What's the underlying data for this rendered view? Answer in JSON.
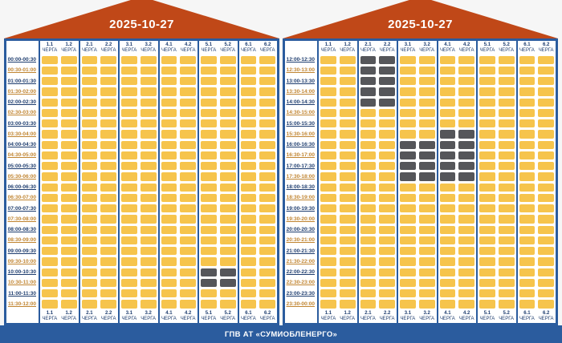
{
  "app": {
    "footer_label": "ГПВ АТ «СУМИОБЛЕНЕРГО»"
  },
  "colors": {
    "roof_red": "#C04818",
    "frame_blue": "#2B5C9E",
    "cell_power_on": "#F6C44C",
    "cell_outage": "#55565A",
    "time_label_hour": "#1D3C6E",
    "time_label_half": "#C08430"
  },
  "queues": [
    "1.1",
    "1.2",
    "2.1",
    "2.2",
    "3.1",
    "3.2",
    "4.1",
    "4.2",
    "5.1",
    "5.2",
    "6.1",
    "6.2"
  ],
  "queue_sublabel": "ЧЕРГА",
  "panels": [
    {
      "date": "2025-10-27",
      "rows": [
        {
          "time": "00:00-00:30",
          "off": []
        },
        {
          "time": "00:30-01:00",
          "off": []
        },
        {
          "time": "01:00-01:30",
          "off": []
        },
        {
          "time": "01:30-02:00",
          "off": []
        },
        {
          "time": "02:00-02:30",
          "off": []
        },
        {
          "time": "02:30-03:00",
          "off": []
        },
        {
          "time": "03:00-03:30",
          "off": []
        },
        {
          "time": "03:30-04:00",
          "off": []
        },
        {
          "time": "04:00-04:30",
          "off": []
        },
        {
          "time": "04:30-05:00",
          "off": []
        },
        {
          "time": "05:00-05:30",
          "off": []
        },
        {
          "time": "05:30-06:00",
          "off": []
        },
        {
          "time": "06:00-06:30",
          "off": []
        },
        {
          "time": "06:30-07:00",
          "off": []
        },
        {
          "time": "07:00-07:30",
          "off": []
        },
        {
          "time": "07:30-08:00",
          "off": []
        },
        {
          "time": "08:00-08:30",
          "off": []
        },
        {
          "time": "08:30-09:00",
          "off": []
        },
        {
          "time": "09:00-09:30",
          "off": []
        },
        {
          "time": "09:30-10:00",
          "off": []
        },
        {
          "time": "10:00-10:30",
          "off": [
            "5.1",
            "5.2"
          ]
        },
        {
          "time": "10:30-11:00",
          "off": [
            "5.1",
            "5.2"
          ]
        },
        {
          "time": "11:00-11:30",
          "off": []
        },
        {
          "time": "11:30-12:00",
          "off": []
        }
      ]
    },
    {
      "date": "2025-10-27",
      "rows": [
        {
          "time": "12:00-12:30",
          "off": [
            "2.1",
            "2.2"
          ]
        },
        {
          "time": "12:30-13:00",
          "off": [
            "2.1",
            "2.2"
          ]
        },
        {
          "time": "13:00-13:30",
          "off": [
            "2.1",
            "2.2"
          ]
        },
        {
          "time": "13:30-14:00",
          "off": [
            "2.1",
            "2.2"
          ]
        },
        {
          "time": "14:00-14:30",
          "off": [
            "2.1",
            "2.2"
          ]
        },
        {
          "time": "14:30-15:00",
          "off": []
        },
        {
          "time": "15:00-15:30",
          "off": []
        },
        {
          "time": "15:30-16:00",
          "off": [
            "4.1",
            "4.2"
          ]
        },
        {
          "time": "16:00-16:30",
          "off": [
            "3.1",
            "3.2",
            "4.1",
            "4.2"
          ]
        },
        {
          "time": "16:30-17:00",
          "off": [
            "3.1",
            "3.2",
            "4.1",
            "4.2"
          ]
        },
        {
          "time": "17:00-17:30",
          "off": [
            "3.1",
            "3.2",
            "4.1",
            "4.2"
          ]
        },
        {
          "time": "17:30-18:00",
          "off": [
            "3.1",
            "3.2",
            "4.1",
            "4.2"
          ]
        },
        {
          "time": "18:00-18:30",
          "off": []
        },
        {
          "time": "18:30-19:00",
          "off": []
        },
        {
          "time": "19:00-19:30",
          "off": []
        },
        {
          "time": "19:30-20:00",
          "off": []
        },
        {
          "time": "20:00-20:30",
          "off": []
        },
        {
          "time": "20:30-21:00",
          "off": []
        },
        {
          "time": "21:00-21:30",
          "off": []
        },
        {
          "time": "21:30-22:00",
          "off": []
        },
        {
          "time": "22:00-22:30",
          "off": []
        },
        {
          "time": "22:30-23:00",
          "off": []
        },
        {
          "time": "23:00-23:30",
          "off": []
        },
        {
          "time": "23:30-00:00",
          "off": []
        }
      ]
    }
  ],
  "chart_data": {
    "type": "heatmap",
    "title": "2025-10-27",
    "columns": [
      "1.1",
      "1.2",
      "2.1",
      "2.2",
      "3.1",
      "3.2",
      "4.1",
      "4.2",
      "5.1",
      "5.2",
      "6.1",
      "6.2"
    ],
    "column_sublabel": "ЧЕРГА",
    "time_range": [
      "00:00",
      "24:00"
    ],
    "slot_minutes": 30,
    "cell_states": {
      "on_color": "#F6C44C",
      "off_color": "#55565A"
    },
    "outages": [
      {
        "queues": [
          "5.1",
          "5.2"
        ],
        "from": "10:00",
        "to": "11:00"
      },
      {
        "queues": [
          "2.1",
          "2.2"
        ],
        "from": "12:00",
        "to": "14:30"
      },
      {
        "queues": [
          "4.1",
          "4.2"
        ],
        "from": "15:30",
        "to": "18:00"
      },
      {
        "queues": [
          "3.1",
          "3.2"
        ],
        "from": "16:00",
        "to": "18:00"
      }
    ],
    "footer": "ГПВ АТ «СУМИОБЛЕНЕРГО»"
  }
}
